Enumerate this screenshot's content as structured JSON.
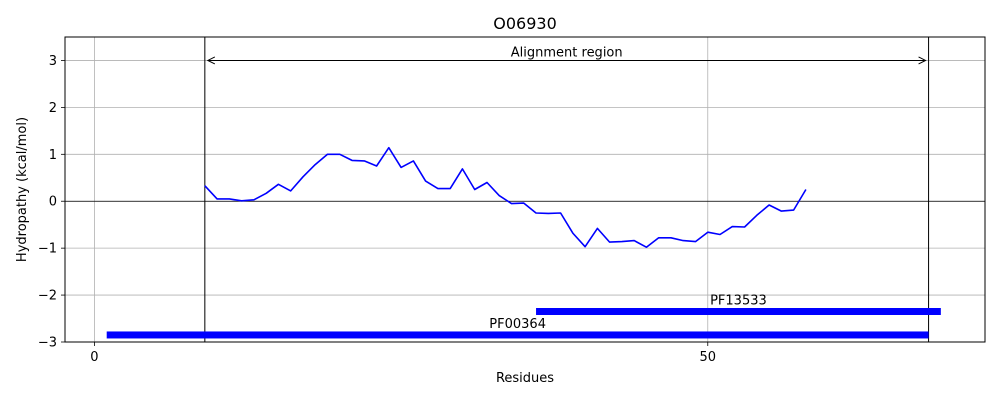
{
  "chart_data": {
    "type": "line",
    "title": "O06930",
    "xlabel": "Residues",
    "ylabel": "Hydropathy (kcal/mol)",
    "xlim": [
      -2.4,
      72.6
    ],
    "ylim": [
      -3,
      3.5
    ],
    "xticks": [
      0,
      50
    ],
    "yticks": [
      -3,
      -2,
      -1,
      0,
      1,
      2,
      3
    ],
    "grid": true,
    "colors": {
      "series": "#0000ff",
      "domains": "#0000ff",
      "zero_line": "#000000",
      "grid": "#b0b0b0"
    },
    "series": [
      {
        "x": [
          9,
          10,
          11,
          12,
          13,
          14,
          15,
          16,
          17,
          18,
          19,
          20,
          21,
          22,
          23,
          24,
          25,
          26,
          27,
          28,
          29,
          30,
          31,
          32,
          33,
          34,
          35,
          36,
          37,
          38,
          39,
          40,
          41,
          42,
          43,
          44,
          45,
          46,
          47,
          48,
          49,
          50,
          51,
          52,
          53,
          54,
          55,
          56,
          57,
          58
        ],
        "values": [
          0.33,
          0.05,
          0.05,
          0.01,
          0.03,
          0.17,
          0.36,
          0.22,
          0.52,
          0.78,
          1.0,
          1.0,
          0.87,
          0.86,
          0.75,
          1.14,
          0.72,
          0.86,
          0.43,
          0.27,
          0.27,
          0.69,
          0.25,
          0.4,
          0.12,
          -0.05,
          -0.04,
          -0.25,
          -0.26,
          -0.25,
          -0.68,
          -0.97,
          -0.58,
          -0.87,
          -0.86,
          -0.84,
          -0.98,
          -0.78,
          -0.78,
          -0.84,
          -0.86,
          -0.66,
          -0.71,
          -0.54,
          -0.55,
          -0.3,
          -0.08,
          -0.21,
          -0.19,
          0.25
        ]
      }
    ],
    "alignment_region": {
      "label": "Alignment region",
      "start": 9,
      "end": 68,
      "y": 3
    },
    "domains": [
      {
        "name": "PF13533",
        "start": 36,
        "end": 69,
        "y": -2.35
      },
      {
        "name": "PF00364",
        "start": 1,
        "end": 68,
        "y": -2.85
      }
    ]
  }
}
